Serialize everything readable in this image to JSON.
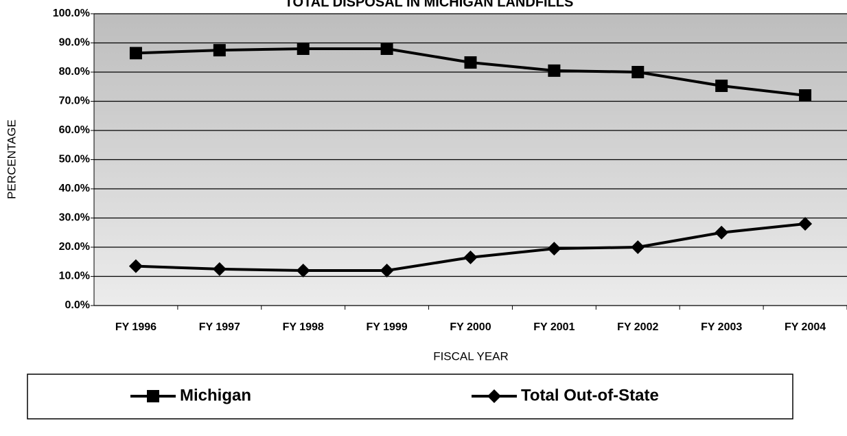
{
  "chart_data": {
    "type": "line",
    "title": "TOTAL DISPOSAL IN MICHIGAN LANDFILLS",
    "x_label": "FISCAL YEAR",
    "y_label": "PERCENTAGE",
    "categories": [
      "FY 1996",
      "FY 1997",
      "FY 1998",
      "FY 1999",
      "FY 2000",
      "FY 2001",
      "FY 2002",
      "FY 2003",
      "FY 2004"
    ],
    "series": [
      {
        "name": "Michigan",
        "color": "#000000",
        "marker": "square",
        "values": [
          86.5,
          87.5,
          88,
          88,
          83.3,
          80.5,
          80,
          75.3,
          72
        ]
      },
      {
        "name": "Total Out-of-State",
        "color": "#000000",
        "marker": "diamond",
        "values": [
          13.5,
          12.5,
          12,
          12,
          16.5,
          19.5,
          20,
          25,
          28
        ]
      }
    ],
    "ylim": [
      0,
      100
    ],
    "yticks": [
      {
        "value": 0,
        "label": "0.0%"
      },
      {
        "value": 10,
        "label": "10.0%"
      },
      {
        "value": 20,
        "label": "20.0%"
      },
      {
        "value": 30,
        "label": "30.0%"
      },
      {
        "value": 40,
        "label": "40.0%"
      },
      {
        "value": 50,
        "label": "50.0%"
      },
      {
        "value": 60,
        "label": "60.0%"
      },
      {
        "value": 70,
        "label": "70.0%"
      },
      {
        "value": 80,
        "label": "80.0%"
      },
      {
        "value": 90,
        "label": "90.0%"
      },
      {
        "value": 100,
        "label": "100.0%"
      }
    ],
    "grid": true,
    "legend": "bottom"
  }
}
